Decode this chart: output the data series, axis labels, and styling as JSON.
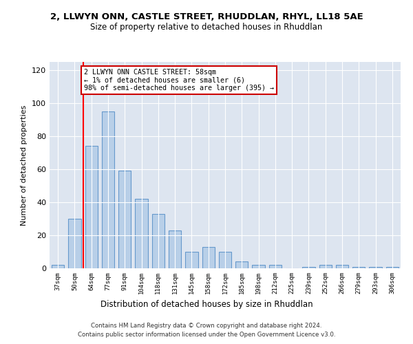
{
  "title": "2, LLWYN ONN, CASTLE STREET, RHUDDLAN, RHYL, LL18 5AE",
  "subtitle": "Size of property relative to detached houses in Rhuddlan",
  "xlabel": "Distribution of detached houses by size in Rhuddlan",
  "ylabel": "Number of detached properties",
  "categories": [
    "37sqm",
    "50sqm",
    "64sqm",
    "77sqm",
    "91sqm",
    "104sqm",
    "118sqm",
    "131sqm",
    "145sqm",
    "158sqm",
    "172sqm",
    "185sqm",
    "198sqm",
    "212sqm",
    "225sqm",
    "239sqm",
    "252sqm",
    "266sqm",
    "279sqm",
    "293sqm",
    "306sqm"
  ],
  "values": [
    2,
    30,
    74,
    95,
    59,
    42,
    33,
    23,
    10,
    13,
    10,
    4,
    2,
    2,
    0,
    1,
    2,
    2,
    1,
    1,
    1
  ],
  "bar_color": "#b8cfe8",
  "bar_edge_color": "#6699cc",
  "annotation_text": "2 LLWYN ONN CASTLE STREET: 58sqm\n← 1% of detached houses are smaller (6)\n98% of semi-detached houses are larger (395) →",
  "annotation_box_color": "#ffffff",
  "annotation_box_edge": "#cc0000",
  "ylim": [
    0,
    125
  ],
  "yticks": [
    0,
    20,
    40,
    60,
    80,
    100,
    120
  ],
  "background_color": "#dde5f0",
  "grid_color": "#ffffff",
  "footer_line1": "Contains HM Land Registry data © Crown copyright and database right 2024.",
  "footer_line2": "Contains public sector information licensed under the Open Government Licence v3.0."
}
